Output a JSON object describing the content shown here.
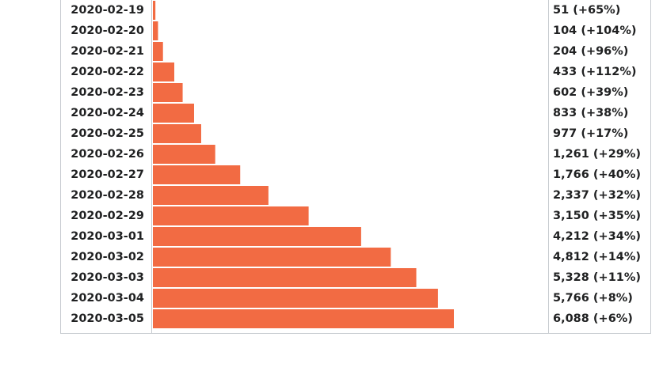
{
  "chart_data": {
    "type": "bar",
    "orientation": "horizontal",
    "color": "#f26b43",
    "categories": [
      "2020-02-19",
      "2020-02-20",
      "2020-02-21",
      "2020-02-22",
      "2020-02-23",
      "2020-02-24",
      "2020-02-25",
      "2020-02-26",
      "2020-02-27",
      "2020-02-28",
      "2020-02-29",
      "2020-03-01",
      "2020-03-02",
      "2020-03-03",
      "2020-03-04",
      "2020-03-05"
    ],
    "values": [
      51,
      104,
      204,
      433,
      602,
      833,
      977,
      1261,
      1766,
      2337,
      3150,
      4212,
      4812,
      5328,
      5766,
      6088
    ],
    "value_labels": [
      "51 (+65%)",
      "104 (+104%)",
      "204 (+96%)",
      "433 (+112%)",
      "602 (+39%)",
      "833 (+38%)",
      "977 (+17%)",
      "1,261 (+29%)",
      "1,766 (+40%)",
      "2,337 (+32%)",
      "3,150 (+35%)",
      "4,212 (+34%)",
      "4,812 (+14%)",
      "5,328 (+11%)",
      "5,766 (+8%)",
      "6,088 (+6%)"
    ]
  }
}
